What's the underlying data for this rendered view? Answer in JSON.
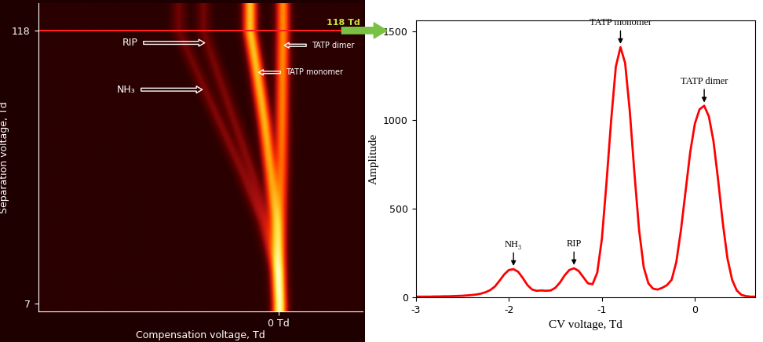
{
  "chart_data": [
    {
      "type": "heatmap",
      "xlabel": "Compensation voltage, Td",
      "ylabel": "Separation voltage, Td",
      "xlim": [
        -4.9,
        1.7
      ],
      "ylim": [
        4,
        129
      ],
      "xticks": [
        {
          "value": 0,
          "label": "0 Td"
        }
      ],
      "yticks": [
        7,
        118
      ],
      "sv": [
        7,
        20,
        40,
        60,
        80,
        100,
        118
      ],
      "ridges": [
        {
          "name": "TATP dimer",
          "cv": [
            0,
            0,
            0.02,
            0.04,
            0.05,
            0.06,
            0.07
          ],
          "amplitude": [
            600,
            700,
            800,
            900,
            1000,
            1050,
            1080
          ]
        },
        {
          "name": "TATP monomer",
          "cv": [
            0,
            -0.02,
            -0.08,
            -0.18,
            -0.3,
            -0.45,
            -0.6
          ],
          "amplitude": [
            900,
            1000,
            1100,
            1200,
            1300,
            1350,
            1400
          ]
        },
        {
          "name": "RIP",
          "cv": [
            0,
            -0.05,
            -0.25,
            -0.55,
            -0.9,
            -1.25,
            -1.55
          ],
          "amplitude": [
            300,
            280,
            250,
            220,
            200,
            180,
            160
          ]
        },
        {
          "name": "NH₃",
          "cv": [
            0,
            -0.08,
            -0.35,
            -0.75,
            -1.2,
            -1.65,
            -2.05
          ],
          "amplitude": [
            300,
            280,
            250,
            220,
            200,
            170,
            150
          ]
        }
      ],
      "selected_sv": {
        "value": 118,
        "label": "118 Td"
      },
      "annotations": [
        {
          "text": "RIP",
          "sv": 113
        },
        {
          "text": "NH₃",
          "sv": 94
        },
        {
          "text": "TATP dimer",
          "sv": 112
        },
        {
          "text": "TATP monomer",
          "sv": 101
        }
      ]
    },
    {
      "type": "line",
      "xlabel": "CV voltage, Td",
      "ylabel": "Amplitude",
      "color": "#ff0000",
      "xlim": [
        -3,
        0.65
      ],
      "ylim": [
        0,
        1560
      ],
      "xticks": [
        -3,
        -2,
        -1,
        0
      ],
      "yticks": [
        0,
        500,
        1000,
        1500
      ],
      "x": [
        -3.0,
        -2.95,
        -2.9,
        -2.85,
        -2.8,
        -2.75,
        -2.7,
        -2.65,
        -2.6,
        -2.55,
        -2.5,
        -2.45,
        -2.4,
        -2.35,
        -2.3,
        -2.25,
        -2.2,
        -2.15,
        -2.1,
        -2.05,
        -2.0,
        -1.95,
        -1.9,
        -1.85,
        -1.8,
        -1.75,
        -1.7,
        -1.65,
        -1.6,
        -1.55,
        -1.5,
        -1.45,
        -1.4,
        -1.35,
        -1.3,
        -1.25,
        -1.2,
        -1.15,
        -1.1,
        -1.05,
        -1.0,
        -0.95,
        -0.9,
        -0.85,
        -0.8,
        -0.75,
        -0.7,
        -0.65,
        -0.6,
        -0.55,
        -0.5,
        -0.45,
        -0.4,
        -0.35,
        -0.3,
        -0.25,
        -0.2,
        -0.15,
        -0.1,
        -0.05,
        0.0,
        0.05,
        0.1,
        0.15,
        0.2,
        0.25,
        0.3,
        0.35,
        0.4,
        0.45,
        0.5,
        0.55,
        0.6,
        0.65
      ],
      "values": [
        5,
        5,
        5,
        5,
        6,
        6,
        7,
        7,
        8,
        9,
        10,
        12,
        14,
        17,
        22,
        30,
        42,
        62,
        95,
        130,
        155,
        160,
        145,
        110,
        70,
        45,
        38,
        40,
        38,
        40,
        55,
        85,
        125,
        155,
        165,
        150,
        115,
        80,
        75,
        140,
        330,
        650,
        1000,
        1300,
        1410,
        1320,
        1050,
        700,
        380,
        170,
        80,
        50,
        45,
        55,
        70,
        100,
        200,
        380,
        600,
        820,
        980,
        1060,
        1080,
        1020,
        880,
        660,
        420,
        220,
        100,
        40,
        15,
        8,
        5,
        5
      ],
      "annotations": [
        {
          "text": "NH₃",
          "x": -1.95
        },
        {
          "text": "RIP",
          "x": -1.3
        },
        {
          "text": "TATP monomer",
          "x": -0.8
        },
        {
          "text": "TATP dimer",
          "x": 0.1
        }
      ]
    }
  ]
}
